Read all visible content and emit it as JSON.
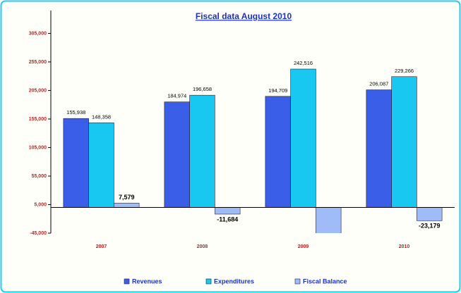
{
  "chart_data": {
    "type": "bar",
    "title": "Fiscal data August 2010",
    "categories": [
      "2007",
      "2008",
      "2009",
      "2010"
    ],
    "series": [
      {
        "name": "Revenues",
        "color": "#3a5ee8",
        "values": [
          155938,
          184974,
          194709,
          206087
        ],
        "value_labels": [
          "155,938",
          "184,974",
          "194,709",
          "206,087"
        ]
      },
      {
        "name": "Expenditures",
        "color": "#19c8f0",
        "values": [
          148358,
          196658,
          242516,
          229266
        ],
        "value_labels": [
          "148,358",
          "196,658",
          "242,516",
          "229,266"
        ]
      },
      {
        "name": "Fiscal Balance",
        "color": "#9fbcf8",
        "values": [
          7579,
          -11684,
          -47807,
          -23179
        ],
        "value_labels": [
          "7,579",
          "-11,684",
          null,
          "-23,179"
        ]
      }
    ],
    "ylim": [
      -45000,
      345000
    ],
    "yticks": [
      {
        "value": -45000,
        "label": "-45,000"
      },
      {
        "value": 5000,
        "label": "5,000"
      },
      {
        "value": 55000,
        "label": "55,000"
      },
      {
        "value": 105000,
        "label": "105,000"
      },
      {
        "value": 155000,
        "label": "155,000"
      },
      {
        "value": 205000,
        "label": "205,000"
      },
      {
        "value": 255000,
        "label": "255,000"
      },
      {
        "value": 305000,
        "label": "305,000"
      }
    ],
    "grid": false,
    "legend": "bottom"
  }
}
